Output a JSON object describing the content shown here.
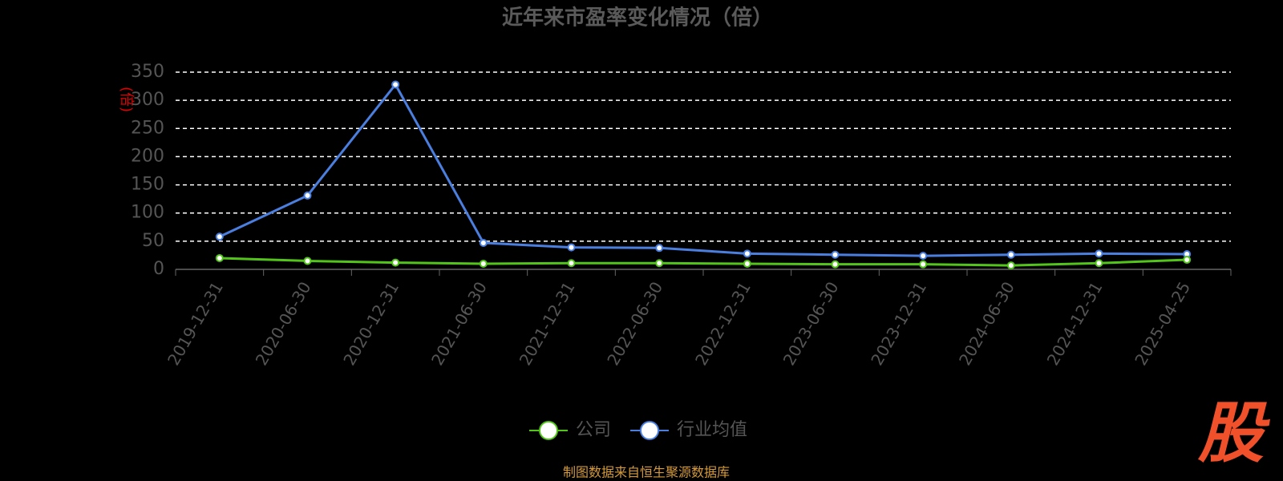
{
  "chart_data": {
    "type": "line",
    "title": "近年来市盈率变化情况（倍）",
    "y_label": "(倍)",
    "categories": [
      "2019-12-31",
      "2020-06-30",
      "2020-12-31",
      "2021-06-30",
      "2021-12-31",
      "2022-06-30",
      "2022-12-31",
      "2023-06-30",
      "2023-12-31",
      "2024-06-30",
      "2024-12-31",
      "2025-04-25"
    ],
    "series": [
      {
        "name": "公司",
        "color": "#52c41a",
        "values": [
          20,
          15,
          12,
          10,
          11,
          11,
          10,
          9,
          9,
          7,
          11,
          17
        ]
      },
      {
        "name": "行业均值",
        "color": "#4a7fe0",
        "values": [
          58,
          131,
          328,
          47,
          39,
          38,
          28,
          26,
          24,
          26,
          28,
          27
        ]
      }
    ],
    "ylim": [
      0,
      350
    ],
    "yticks": [
      0,
      50,
      100,
      150,
      200,
      250,
      300,
      350
    ],
    "grid": true,
    "legend": "bottom",
    "source": "制图数据来自恒生聚源数据库",
    "logo": "股"
  }
}
